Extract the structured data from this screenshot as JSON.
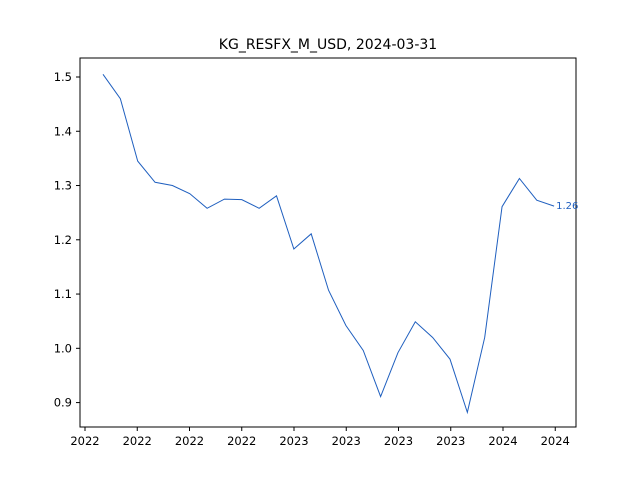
{
  "chart_data": {
    "type": "line",
    "title": "KG_RESFX_M_USD, 2024-03-31",
    "xlabel": "",
    "ylabel": "",
    "grid": false,
    "legend": "none",
    "line_color": "#1f5fbf",
    "x_tick_labels": [
      "2022",
      "2022",
      "2022",
      "2022",
      "2023",
      "2023",
      "2023",
      "2023",
      "2024",
      "2024"
    ],
    "y_ticks": [
      0.9,
      1.0,
      1.1,
      1.2,
      1.3,
      1.4,
      1.5
    ],
    "y_tick_labels": [
      "0.9",
      "1.0",
      "1.1",
      "1.2",
      "1.3",
      "1.4",
      "1.5"
    ],
    "ylim": [
      0.855,
      1.535
    ],
    "x": [
      "2022-01-31",
      "2022-02-28",
      "2022-03-31",
      "2022-04-30",
      "2022-05-31",
      "2022-06-30",
      "2022-07-31",
      "2022-08-31",
      "2022-09-30",
      "2022-10-31",
      "2022-11-30",
      "2022-12-31",
      "2023-01-31",
      "2023-02-28",
      "2023-03-31",
      "2023-04-30",
      "2023-05-31",
      "2023-06-30",
      "2023-07-31",
      "2023-08-31",
      "2023-09-30",
      "2023-10-31",
      "2023-11-30",
      "2023-12-31",
      "2024-01-31",
      "2024-02-29",
      "2024-03-31"
    ],
    "series": [
      {
        "values": [
          1.505,
          1.46,
          1.345,
          1.306,
          1.3,
          1.285,
          1.258,
          1.275,
          1.274,
          1.258,
          1.281,
          1.183,
          1.211,
          1.107,
          1.042,
          0.996,
          0.911,
          0.992,
          1.049,
          1.02,
          0.98,
          0.882,
          1.02,
          1.261,
          1.313,
          1.273,
          1.262
        ]
      }
    ],
    "end_label": "1.26"
  }
}
